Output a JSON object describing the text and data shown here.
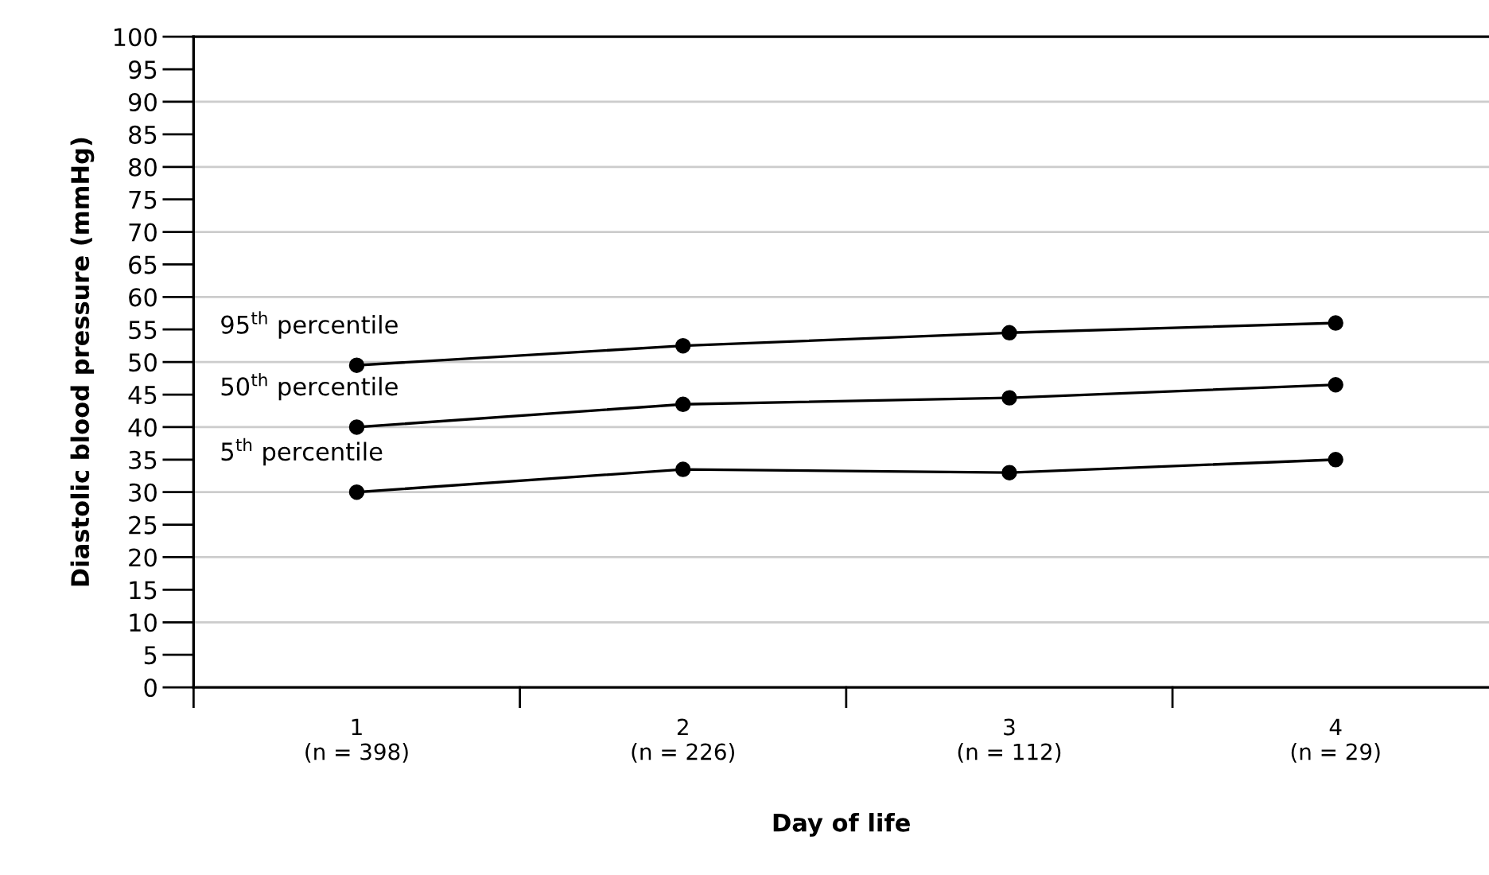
{
  "chart_data": {
    "type": "line",
    "xlabel": "Day of life",
    "ylabel": "Diastolic blood pressure (mmHg)",
    "categories": [
      "1\n(n = 398)",
      "2\n(n = 226)",
      "3\n(n = 112)",
      "4\n(n = 29)"
    ],
    "series": [
      {
        "name": "95$^{th}$ percentile",
        "color": "#000000",
        "values": [
          49.5,
          52.5,
          54.5,
          56
        ]
      },
      {
        "name": "50$^{th}$ percentile",
        "color": "#000000",
        "values": [
          40,
          43.5,
          44.5,
          46.5
        ]
      },
      {
        "name": "5$^{th}$ percentile",
        "color": "#000000",
        "values": [
          30,
          33.5,
          33,
          35
        ]
      }
    ],
    "ylim": [
      0,
      100
    ],
    "yticks": [
      0,
      5,
      10,
      15,
      20,
      25,
      30,
      35,
      40,
      45,
      50,
      55,
      60,
      65,
      70,
      75,
      80,
      85,
      90,
      95,
      100
    ],
    "grid": "y",
    "marker": "circle",
    "line_style": "solid",
    "legend": "left"
  }
}
